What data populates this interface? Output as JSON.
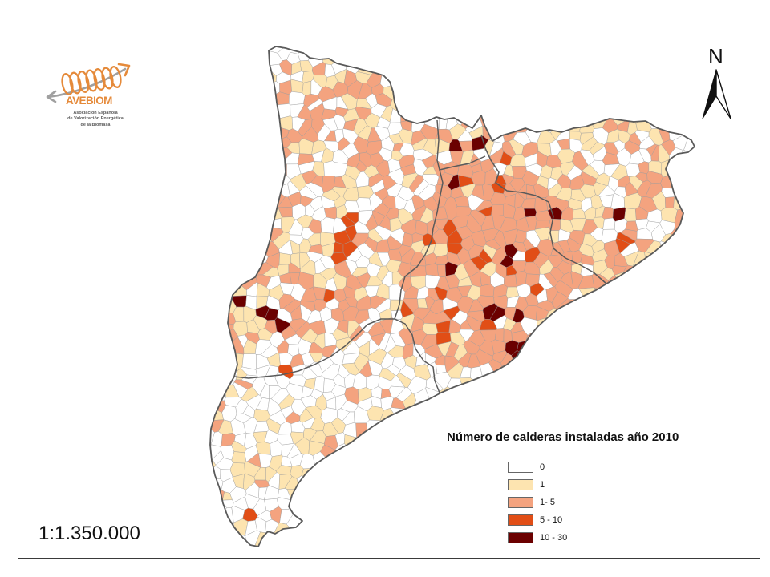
{
  "logo": {
    "name": "AVEBIOM",
    "subtitle_lines": [
      "Asociación Española",
      "de Valorización Energética",
      "de la Biomasa"
    ]
  },
  "north_arrow": {
    "label": "N",
    "icon": "north-arrow-icon"
  },
  "scale": "1:1.350.000",
  "legend": {
    "title": "Número de calderas instaladas año 2010",
    "items": [
      {
        "label": "0",
        "color": "#ffffff"
      },
      {
        "label": "1",
        "color": "#fde4b0"
      },
      {
        "label": "1- 5",
        "color": "#f4a37f"
      },
      {
        "label": "5 - 10",
        "color": "#e14e16"
      },
      {
        "label": "10 - 30",
        "color": "#6b0000"
      }
    ]
  },
  "colors": {
    "logo_orange": "#e58a3a",
    "logo_gray": "#a0a0a0",
    "boundary": "#5a5a5a",
    "municipality_border": "#9c9c9c",
    "frame": "#3a3a3a"
  }
}
